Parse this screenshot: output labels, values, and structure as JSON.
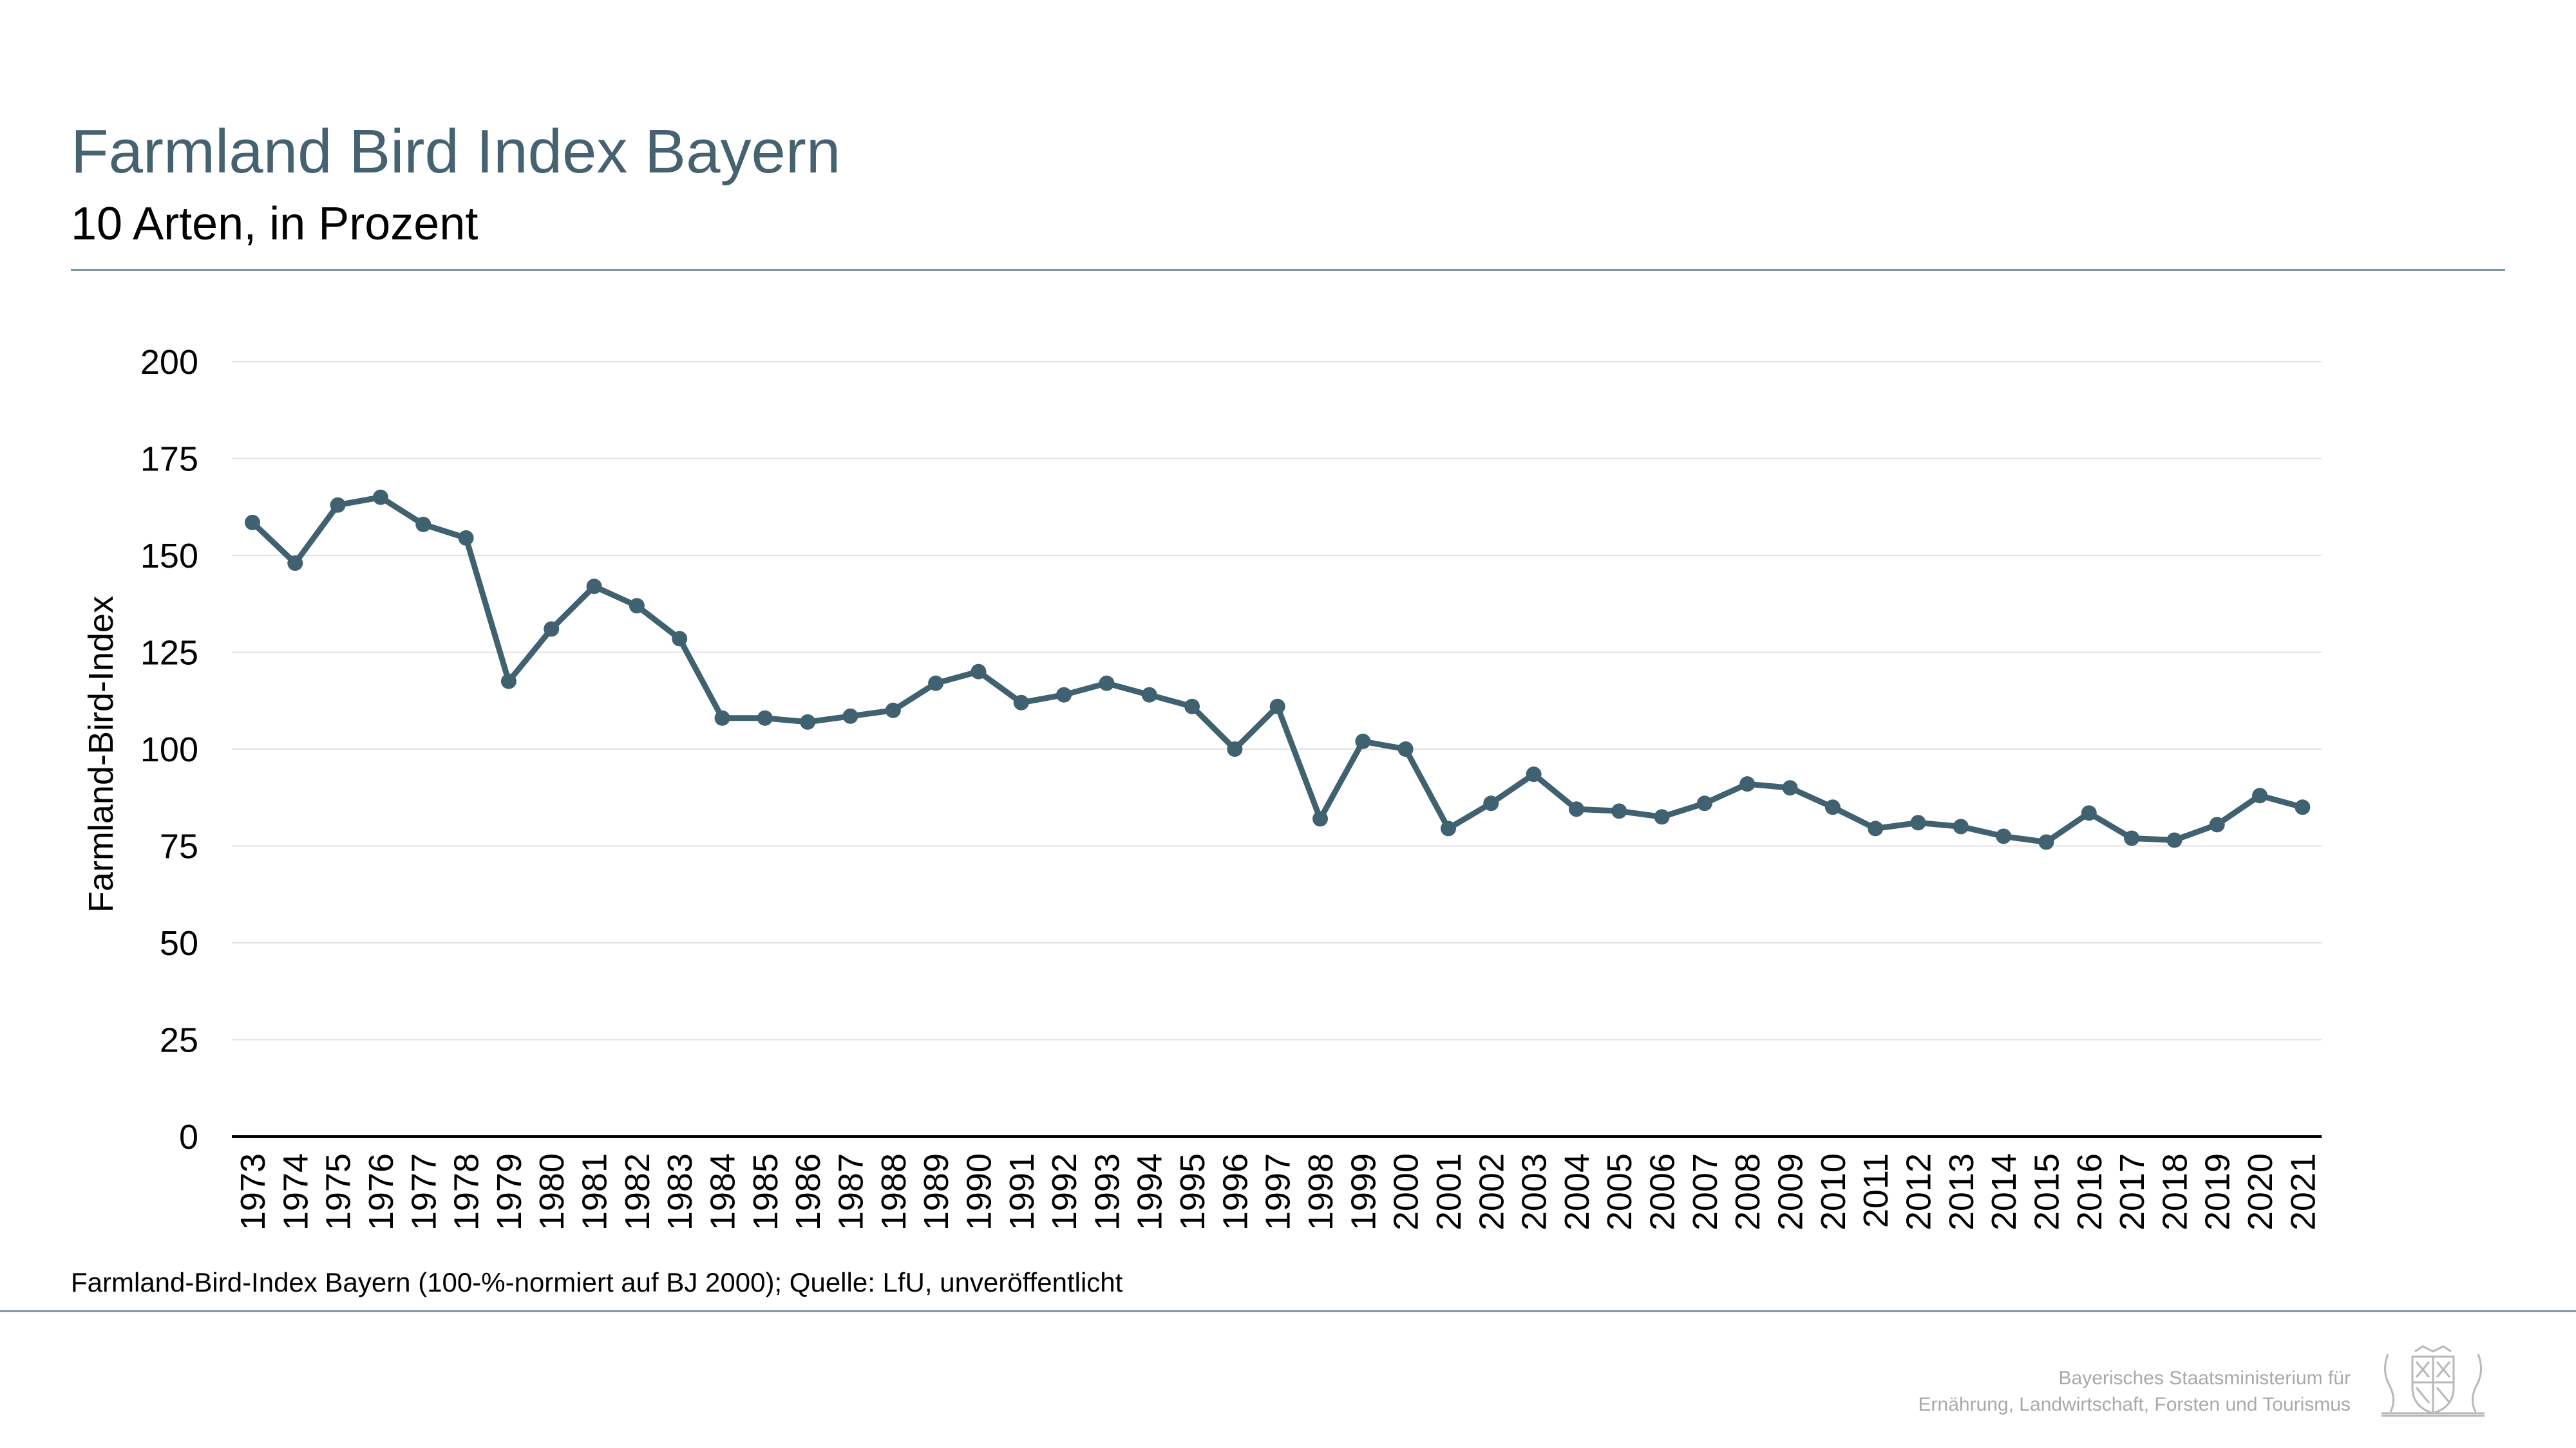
{
  "header": {
    "title": "Farmland Bird Index Bayern",
    "subtitle": "10 Arten, in Prozent"
  },
  "chart_data": {
    "type": "line",
    "title": "",
    "xlabel": "",
    "ylabel": "Farmland-Bird-Index",
    "ylim": [
      0,
      200
    ],
    "yticks": [
      0,
      25,
      50,
      75,
      100,
      125,
      150,
      175,
      200
    ],
    "grid": true,
    "legend": "none",
    "line_color": "#3f6170",
    "categories": [
      "1973",
      "1974",
      "1975",
      "1976",
      "1977",
      "1978",
      "1979",
      "1980",
      "1981",
      "1982",
      "1983",
      "1984",
      "1985",
      "1986",
      "1987",
      "1988",
      "1989",
      "1990",
      "1991",
      "1992",
      "1993",
      "1994",
      "1995",
      "1996",
      "1997",
      "1998",
      "1999",
      "2000",
      "2001",
      "2002",
      "2003",
      "2004",
      "2005",
      "2006",
      "2007",
      "2008",
      "2009",
      "2010",
      "2011",
      "2012",
      "2013",
      "2014",
      "2015",
      "2016",
      "2017",
      "2018",
      "2019",
      "2020",
      "2021"
    ],
    "values": [
      158.5,
      148,
      163,
      165,
      158,
      154.5,
      117.5,
      131,
      142,
      137,
      128.5,
      108,
      108,
      107,
      108.5,
      110,
      117,
      120,
      112,
      114,
      117,
      114,
      111,
      100,
      111,
      82,
      102,
      100,
      79.5,
      86,
      93.5,
      84.5,
      84,
      82.5,
      86,
      91,
      90,
      85,
      79.5,
      81,
      80,
      77.5,
      76,
      83.5,
      77,
      76.5,
      80.5,
      88,
      85
    ]
  },
  "source_note": "Farmland-Bird-Index Bayern (100-%-normiert auf BJ 2000); Quelle: LfU, unveröffentlicht",
  "footer": {
    "line1": "Bayerisches Staatsministerium für",
    "line2": "Ernährung, Landwirtschaft, Forsten und Tourismus",
    "logo_icon": "bavarian-coat-of-arms-icon"
  }
}
